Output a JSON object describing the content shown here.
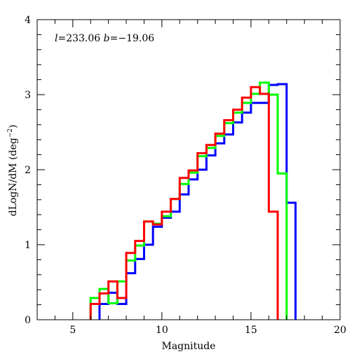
{
  "chart_data": {
    "type": "line",
    "style": "step histogram",
    "title": "",
    "annotation": "l=233.06  b=−19.06",
    "xlabel": "Magnitude",
    "ylabel": "dLogN/dM (deg⁻²)",
    "xlim": [
      3,
      20
    ],
    "ylim": [
      0,
      4
    ],
    "xticks": [
      5,
      10,
      15,
      20
    ],
    "yticks": [
      0,
      1,
      2,
      3,
      4
    ],
    "grid": false,
    "legend": "none",
    "bin_width": 0.5,
    "series": [
      {
        "color": "#0000ff",
        "bins": [
          {
            "x": 6.5,
            "y": 0.21
          },
          {
            "x": 7.0,
            "y": 0.36
          },
          {
            "x": 7.5,
            "y": 0.21
          },
          {
            "x": 8.0,
            "y": 0.62
          },
          {
            "x": 8.5,
            "y": 0.81
          },
          {
            "x": 9.0,
            "y": 1.0
          },
          {
            "x": 9.5,
            "y": 1.24
          },
          {
            "x": 10.0,
            "y": 1.36
          },
          {
            "x": 10.5,
            "y": 1.44
          },
          {
            "x": 11.0,
            "y": 1.67
          },
          {
            "x": 11.5,
            "y": 1.87
          },
          {
            "x": 12.0,
            "y": 2.0
          },
          {
            "x": 12.5,
            "y": 2.19
          },
          {
            "x": 13.0,
            "y": 2.35
          },
          {
            "x": 13.5,
            "y": 2.47
          },
          {
            "x": 14.0,
            "y": 2.63
          },
          {
            "x": 14.5,
            "y": 2.76
          },
          {
            "x": 15.0,
            "y": 2.89
          },
          {
            "x": 15.5,
            "y": 2.89
          },
          {
            "x": 16.0,
            "y": 3.13
          },
          {
            "x": 16.5,
            "y": 3.14
          },
          {
            "x": 17.0,
            "y": 1.56
          }
        ]
      },
      {
        "color": "#00ff00",
        "bins": [
          {
            "x": 6.0,
            "y": 0.29
          },
          {
            "x": 6.5,
            "y": 0.41
          },
          {
            "x": 7.0,
            "y": 0.22
          },
          {
            "x": 7.5,
            "y": 0.51
          },
          {
            "x": 8.0,
            "y": 0.79
          },
          {
            "x": 8.5,
            "y": 0.99
          },
          {
            "x": 9.0,
            "y": 1.31
          },
          {
            "x": 9.5,
            "y": 1.28
          },
          {
            "x": 10.0,
            "y": 1.38
          },
          {
            "x": 10.5,
            "y": 1.61
          },
          {
            "x": 11.0,
            "y": 1.81
          },
          {
            "x": 11.5,
            "y": 1.96
          },
          {
            "x": 12.0,
            "y": 2.18
          },
          {
            "x": 12.5,
            "y": 2.29
          },
          {
            "x": 13.0,
            "y": 2.45
          },
          {
            "x": 13.5,
            "y": 2.62
          },
          {
            "x": 14.0,
            "y": 2.76
          },
          {
            "x": 14.5,
            "y": 2.89
          },
          {
            "x": 15.0,
            "y": 3.01
          },
          {
            "x": 15.5,
            "y": 3.16
          },
          {
            "x": 16.0,
            "y": 3.0
          },
          {
            "x": 16.5,
            "y": 1.95
          }
        ]
      },
      {
        "color": "#ff0000",
        "bins": [
          {
            "x": 6.0,
            "y": 0.21
          },
          {
            "x": 6.5,
            "y": 0.35
          },
          {
            "x": 7.0,
            "y": 0.51
          },
          {
            "x": 7.5,
            "y": 0.29
          },
          {
            "x": 8.0,
            "y": 0.89
          },
          {
            "x": 8.5,
            "y": 1.05
          },
          {
            "x": 9.0,
            "y": 1.31
          },
          {
            "x": 9.5,
            "y": 1.27
          },
          {
            "x": 10.0,
            "y": 1.44
          },
          {
            "x": 10.5,
            "y": 1.61
          },
          {
            "x": 11.0,
            "y": 1.89
          },
          {
            "x": 11.5,
            "y": 1.99
          },
          {
            "x": 12.0,
            "y": 2.22
          },
          {
            "x": 12.5,
            "y": 2.33
          },
          {
            "x": 13.0,
            "y": 2.48
          },
          {
            "x": 13.5,
            "y": 2.66
          },
          {
            "x": 14.0,
            "y": 2.8
          },
          {
            "x": 14.5,
            "y": 2.96
          },
          {
            "x": 15.0,
            "y": 3.1
          },
          {
            "x": 15.5,
            "y": 3.01
          },
          {
            "x": 16.0,
            "y": 1.44
          }
        ]
      }
    ]
  }
}
